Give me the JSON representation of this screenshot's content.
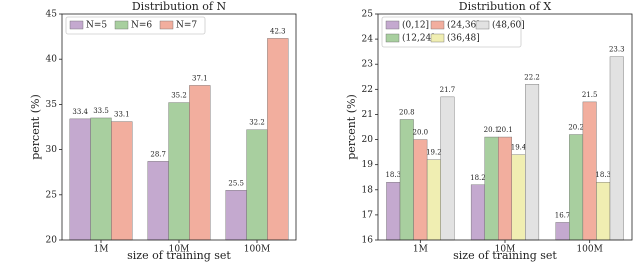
{
  "chart_data": [
    {
      "type": "bar",
      "title": "Distribution of N",
      "x_label": "size of training set",
      "y_label": "percent (%)",
      "categories": [
        "1M",
        "10M",
        "100M"
      ],
      "series": [
        {
          "name": "N=5",
          "color": "#c4a9cf",
          "values": [
            33.4,
            28.7,
            25.5
          ]
        },
        {
          "name": "N=6",
          "color": "#a8cf9f",
          "values": [
            33.5,
            35.2,
            32.2
          ]
        },
        {
          "name": "N=7",
          "color": "#f2ae9e",
          "values": [
            33.1,
            37.1,
            42.3
          ]
        }
      ],
      "ylim": [
        20,
        45
      ],
      "yticks": [
        20,
        25,
        30,
        35,
        40,
        45
      ],
      "legend": "upper left"
    },
    {
      "type": "bar",
      "title": "Distribution of X",
      "x_label": "size of training set",
      "y_label": "percent (%)",
      "categories": [
        "1M",
        "10M",
        "100M"
      ],
      "series": [
        {
          "name": "(0,12]",
          "color": "#c4a9cf",
          "values": [
            18.3,
            18.2,
            16.7
          ]
        },
        {
          "name": "(12,24]",
          "color": "#a8cf9f",
          "values": [
            20.8,
            20.1,
            20.2
          ]
        },
        {
          "name": "(24,36]",
          "color": "#f2ae9e",
          "values": [
            20.0,
            20.1,
            21.5
          ],
          "value_labels": [
            "20.0",
            "20.1",
            "21.5"
          ]
        },
        {
          "name": "(36,48]",
          "color": "#f0eeb2",
          "values": [
            19.2,
            19.4,
            18.3
          ]
        },
        {
          "name": "(48,60]",
          "color": "#e2e2e2",
          "values": [
            21.7,
            22.2,
            23.3
          ]
        }
      ],
      "ylim": [
        16,
        25
      ],
      "yticks": [
        16,
        17,
        18,
        19,
        20,
        21,
        22,
        23,
        24,
        25
      ],
      "legend": "upper left"
    }
  ]
}
